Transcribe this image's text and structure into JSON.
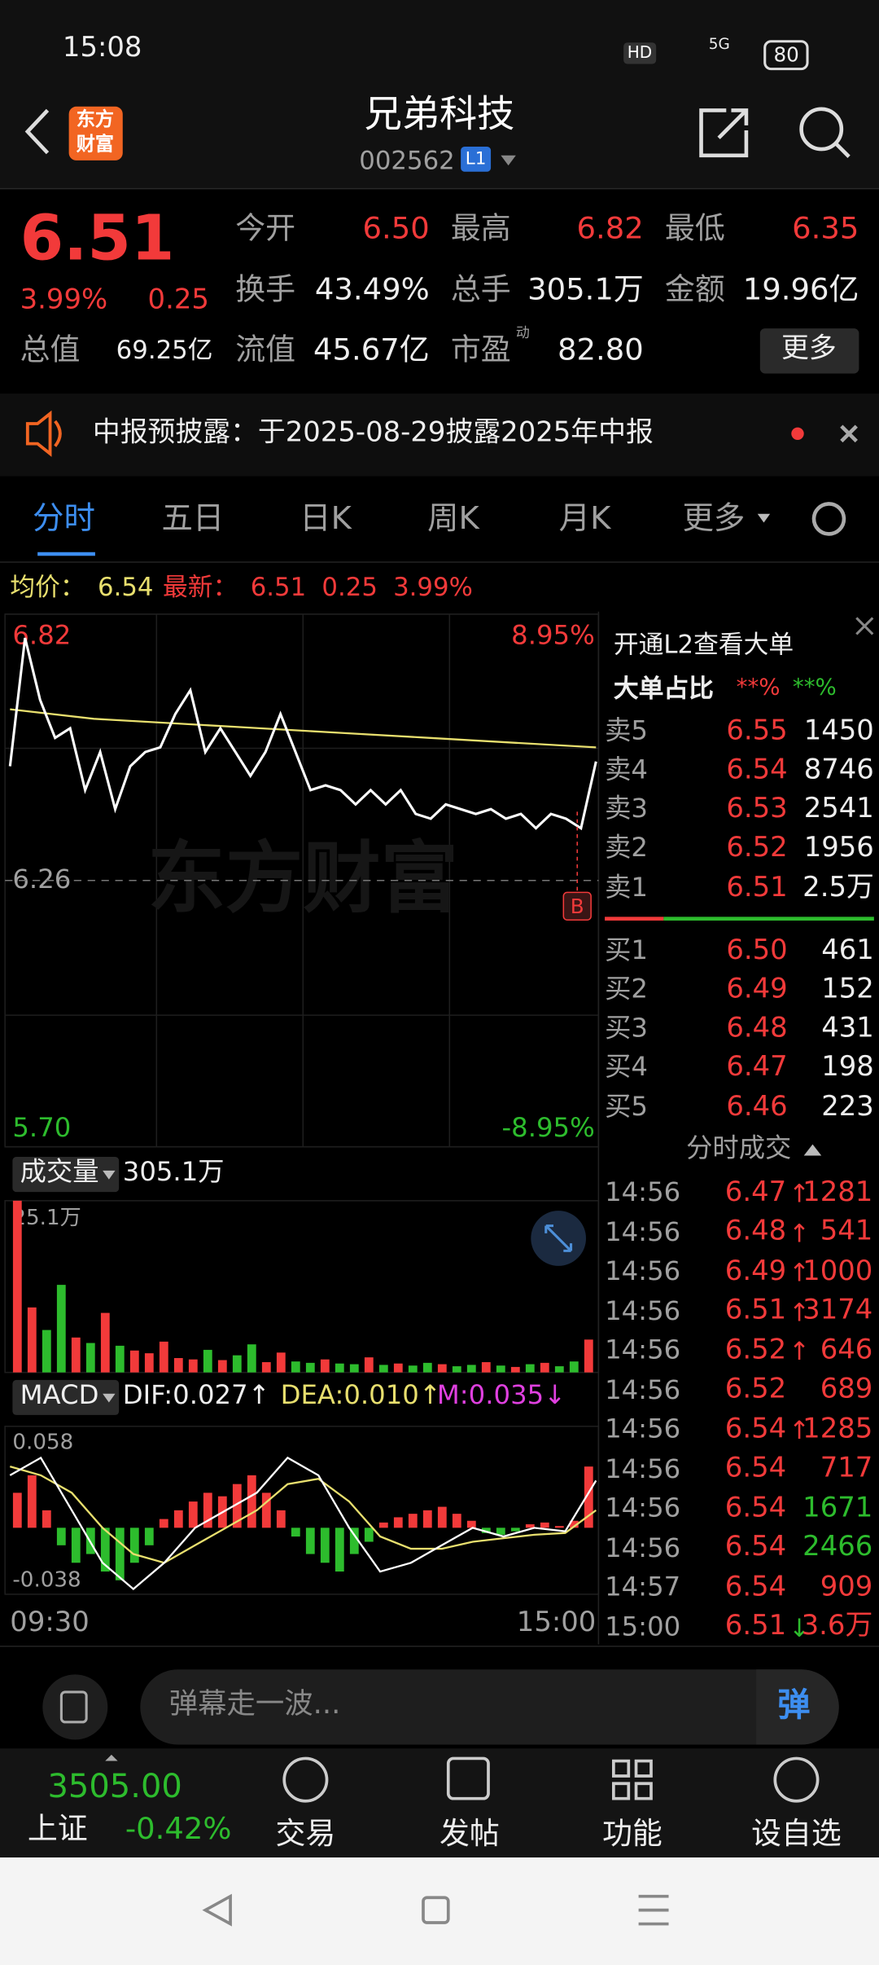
{
  "status_bar": {
    "time": "15:08",
    "hd": "HD",
    "network": "5G",
    "battery": "80"
  },
  "header": {
    "logo": [
      "东方",
      "财富"
    ],
    "title": "兄弟科技",
    "code": "002562",
    "level": "L1"
  },
  "quote": {
    "price": "6.51",
    "change_pct": "3.99%",
    "change": "0.25",
    "stats": [
      {
        "label": "今开",
        "value": "6.50"
      },
      {
        "label": "最高",
        "value": "6.82"
      },
      {
        "label": "最低",
        "value": "6.35"
      },
      {
        "label": "换手",
        "value": "43.49%"
      },
      {
        "label": "总手",
        "value": "305.1万"
      },
      {
        "label": "金额",
        "value": "19.96亿"
      },
      {
        "label": "总值",
        "value": "69.25亿"
      },
      {
        "label": "流值",
        "value": "45.67亿"
      },
      {
        "label": "市盈",
        "value": "82.80",
        "note": "动"
      }
    ],
    "more": "更多"
  },
  "notice": "中报预披露：于2025-08-29披露2025年中报",
  "tabs": [
    "分时",
    "五日",
    "日K",
    "周K",
    "月K",
    "更多"
  ],
  "summary": {
    "avg_label": "均价：",
    "avg": "6.54",
    "latest_label": "最新：",
    "latest": "6.51",
    "change": "0.25",
    "change_pct": "3.99%"
  },
  "intraday": {
    "type": "line",
    "ylim": [
      5.7,
      6.82
    ],
    "yticks": [
      6.82,
      6.26,
      {
        "value": 5.7,
        "label": "5.70"
      }
    ],
    "pct_labels": [
      "8.95%",
      "-8.95%"
    ],
    "watermark": "东方财富",
    "marker": "B",
    "price_color": "#ffffff",
    "average_color": "#e8df6e",
    "price": [
      6.5,
      6.77,
      6.64,
      6.56,
      6.58,
      6.45,
      6.53,
      6.41,
      6.5,
      6.53,
      6.54,
      6.61,
      6.66,
      6.53,
      6.58,
      6.53,
      6.48,
      6.53,
      6.61,
      6.53,
      6.45,
      6.46,
      6.45,
      6.42,
      6.45,
      6.42,
      6.45,
      6.4,
      6.39,
      6.42,
      6.41,
      6.4,
      6.41,
      6.39,
      6.4,
      6.37,
      6.4,
      6.39,
      6.37,
      6.51
    ],
    "average": [
      6.62,
      6.6,
      6.59,
      6.58,
      6.57,
      6.56,
      6.55,
      6.54
    ],
    "x_labels": [
      "09:30",
      "15:00"
    ]
  },
  "volume": {
    "label": "成交量",
    "total": "305.1万",
    "max_label": "25.1万",
    "ylim": [
      0,
      25.1
    ],
    "values": [
      25.1,
      9.5,
      6.2,
      12.8,
      5.1,
      4.3,
      8.7,
      3.9,
      3.2,
      2.8,
      4.5,
      2.1,
      1.9,
      3.3,
      1.8,
      2.5,
      4.1,
      1.5,
      2.9,
      1.6,
      1.4,
      1.9,
      1.3,
      1.2,
      2.2,
      1.1,
      1.3,
      1.0,
      1.4,
      1.2,
      0.9,
      1.1,
      1.5,
      1.0,
      0.8,
      1.2,
      1.4,
      0.9,
      1.6,
      4.8
    ]
  },
  "macd": {
    "label": "MACD",
    "dif_label": "DIF:0.027↑",
    "dea_label": "DEA:0.010↑",
    "m_label": "M:0.035↓",
    "ylim": [
      -0.038,
      0.058
    ],
    "yticks": [
      0.058,
      -0.038
    ],
    "hist": [
      0.02,
      0.03,
      0.01,
      -0.01,
      -0.02,
      -0.015,
      -0.025,
      -0.03,
      -0.02,
      -0.01,
      0.005,
      0.01,
      0.015,
      0.02,
      0.018,
      0.025,
      0.03,
      0.02,
      0.01,
      -0.005,
      -0.015,
      -0.02,
      -0.025,
      -0.015,
      -0.008,
      0.003,
      0.006,
      0.008,
      0.01,
      0.012,
      0.008,
      0.004,
      -0.003,
      -0.004,
      -0.002,
      0.002,
      0.003,
      0.001,
      0.004,
      0.035
    ],
    "dif": [
      0.03,
      0.04,
      0.01,
      -0.02,
      -0.035,
      -0.02,
      0.0,
      0.01,
      0.02,
      0.04,
      0.03,
      0.0,
      -0.025,
      -0.02,
      -0.01,
      0.0,
      -0.005,
      0.0,
      -0.002,
      0.027
    ],
    "dea": [
      0.035,
      0.03,
      0.02,
      0.0,
      -0.015,
      -0.02,
      -0.01,
      0.0,
      0.01,
      0.025,
      0.028,
      0.015,
      -0.005,
      -0.012,
      -0.012,
      -0.008,
      -0.006,
      -0.004,
      -0.003,
      0.01
    ]
  },
  "order_book": {
    "promo": "开通L2查看大单",
    "big_label": "大单占比",
    "big_buy": "**%",
    "big_sell": "**%",
    "asks": [
      {
        "label": "卖5",
        "price": "6.55",
        "volume": "1450"
      },
      {
        "label": "卖4",
        "price": "6.54",
        "volume": "8746"
      },
      {
        "label": "卖3",
        "price": "6.53",
        "volume": "2541"
      },
      {
        "label": "卖2",
        "price": "6.52",
        "volume": "1956"
      },
      {
        "label": "卖1",
        "price": "6.51",
        "volume": "2.5万"
      }
    ],
    "bids": [
      {
        "label": "买1",
        "price": "6.50",
        "volume": "461"
      },
      {
        "label": "买2",
        "price": "6.49",
        "volume": "152"
      },
      {
        "label": "买3",
        "price": "6.48",
        "volume": "431"
      },
      {
        "label": "买4",
        "price": "6.47",
        "volume": "198"
      },
      {
        "label": "买5",
        "price": "6.46",
        "volume": "223"
      }
    ]
  },
  "trades": {
    "title": "分时成交",
    "rows": [
      {
        "time": "14:56",
        "price": "6.47",
        "dir": "↑",
        "volume": "1281",
        "color": "#f23a3a"
      },
      {
        "time": "14:56",
        "price": "6.48",
        "dir": "↑",
        "volume": "541",
        "color": "#f23a3a"
      },
      {
        "time": "14:56",
        "price": "6.49",
        "dir": "↑",
        "volume": "1000",
        "color": "#f23a3a"
      },
      {
        "time": "14:56",
        "price": "6.51",
        "dir": "↑",
        "volume": "3174",
        "color": "#f23a3a"
      },
      {
        "time": "14:56",
        "price": "6.52",
        "dir": "↑",
        "volume": "646",
        "color": "#f23a3a"
      },
      {
        "time": "14:56",
        "price": "6.52",
        "volume": "689",
        "color": "#f23a3a"
      },
      {
        "time": "14:56",
        "price": "6.54",
        "dir": "↑",
        "volume": "1285",
        "color": "#f23a3a"
      },
      {
        "time": "14:56",
        "price": "6.54",
        "volume": "717",
        "color": "#f23a3a"
      },
      {
        "time": "14:56",
        "price": "6.54",
        "volume": "1671",
        "color": "#2dbc2d"
      },
      {
        "time": "14:56",
        "price": "6.54",
        "volume": "2466",
        "color": "#2dbc2d"
      },
      {
        "time": "14:57",
        "price": "6.54",
        "volume": "909",
        "color": "#f23a3a"
      },
      {
        "time": "15:00",
        "price": "6.51",
        "dir": "↓",
        "volume": "3.6万",
        "color": "#f23a3a"
      }
    ]
  },
  "comment": {
    "placeholder": "弹幕走一波...",
    "button": "弹"
  },
  "index": {
    "value": "3505.00",
    "name": "上证",
    "change_pct": "-0.42%"
  },
  "nav": [
    "交易",
    "发帖",
    "功能",
    "设自选"
  ]
}
